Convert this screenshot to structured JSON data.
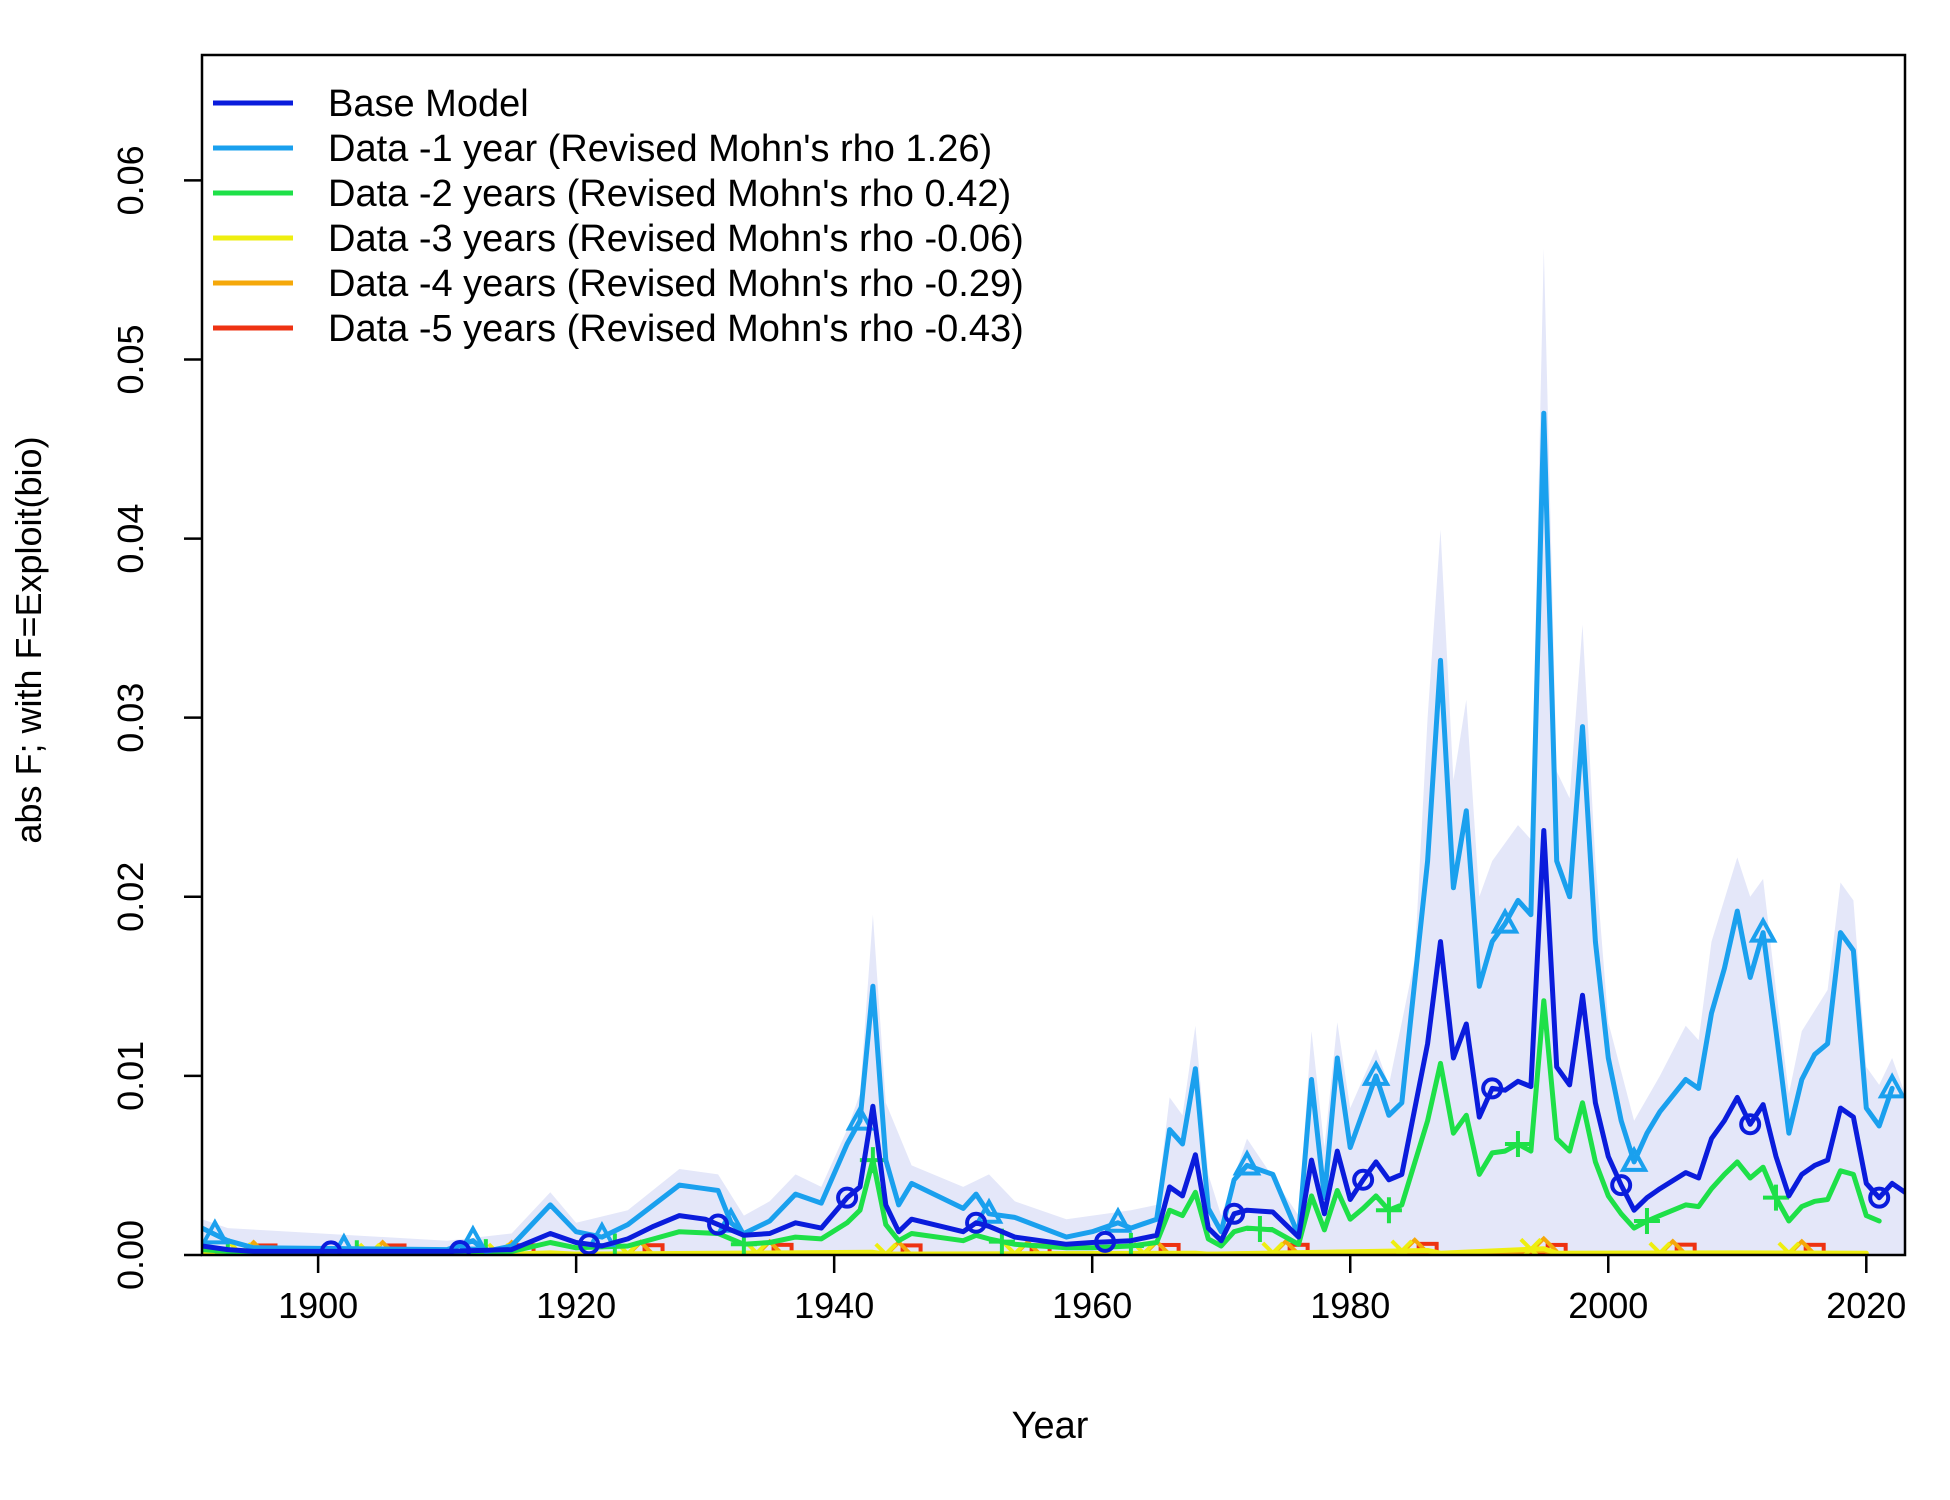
{
  "chart_data": {
    "type": "line",
    "xlabel": "Year",
    "ylabel": "abs F; with F=Exploit(bio)",
    "xlim": [
      1891,
      2023
    ],
    "ylim": [
      0,
      0.067
    ],
    "x_ticks": [
      "1900",
      "1920",
      "1940",
      "1960",
      "1980",
      "2000",
      "2020"
    ],
    "y_ticks": [
      "0.00",
      "0.01",
      "0.02",
      "0.03",
      "0.04",
      "0.05",
      "0.06"
    ],
    "legend_position": "top-left",
    "uncertainty_band": {
      "color": "#e4e7f9",
      "upper": [
        [
          1891,
          0.002
        ],
        [
          1893,
          0.0015
        ],
        [
          1910,
          0.0008
        ],
        [
          1915,
          0.0012
        ],
        [
          1918,
          0.0035
        ],
        [
          1920,
          0.0018
        ],
        [
          1924,
          0.0025
        ],
        [
          1928,
          0.0048
        ],
        [
          1931,
          0.0045
        ],
        [
          1933,
          0.0022
        ],
        [
          1935,
          0.003
        ],
        [
          1937,
          0.0045
        ],
        [
          1939,
          0.0038
        ],
        [
          1941,
          0.007
        ],
        [
          1942,
          0.009
        ],
        [
          1943,
          0.019
        ],
        [
          1944,
          0.0085
        ],
        [
          1946,
          0.005
        ],
        [
          1950,
          0.0038
        ],
        [
          1952,
          0.0045
        ],
        [
          1954,
          0.003
        ],
        [
          1958,
          0.002
        ],
        [
          1963,
          0.0025
        ],
        [
          1965,
          0.0028
        ],
        [
          1966,
          0.0088
        ],
        [
          1967,
          0.0078
        ],
        [
          1968,
          0.0128
        ],
        [
          1969,
          0.0045
        ],
        [
          1970,
          0.0022
        ],
        [
          1972,
          0.0065
        ],
        [
          1976,
          0.0022
        ],
        [
          1977,
          0.0125
        ],
        [
          1978,
          0.006
        ],
        [
          1979,
          0.013
        ],
        [
          1980,
          0.0082
        ],
        [
          1982,
          0.0115
        ],
        [
          1983,
          0.0095
        ],
        [
          1985,
          0.0165
        ],
        [
          1986,
          0.03
        ],
        [
          1987,
          0.0405
        ],
        [
          1988,
          0.0265
        ],
        [
          1989,
          0.031
        ],
        [
          1990,
          0.02
        ],
        [
          1991,
          0.022
        ],
        [
          1993,
          0.024
        ],
        [
          1994,
          0.0232
        ],
        [
          1995,
          0.0562
        ],
        [
          1996,
          0.027
        ],
        [
          1997,
          0.0255
        ],
        [
          1998,
          0.0352
        ],
        [
          1999,
          0.022
        ],
        [
          2000,
          0.013
        ],
        [
          2002,
          0.0075
        ],
        [
          2004,
          0.01
        ],
        [
          2006,
          0.0128
        ],
        [
          2007,
          0.012
        ],
        [
          2008,
          0.0175
        ],
        [
          2010,
          0.0222
        ],
        [
          2011,
          0.02
        ],
        [
          2012,
          0.021
        ],
        [
          2013,
          0.0148
        ],
        [
          2014,
          0.009
        ],
        [
          2015,
          0.0125
        ],
        [
          2017,
          0.0148
        ],
        [
          2018,
          0.0208
        ],
        [
          2019,
          0.0198
        ],
        [
          2020,
          0.0105
        ],
        [
          2021,
          0.0095
        ],
        [
          2022,
          0.011
        ],
        [
          2023,
          0.009
        ]
      ]
    },
    "series": [
      {
        "name": "Base Model",
        "color": "#0a1cdc",
        "marker": "circle",
        "marker_years": [
          1901,
          1911,
          1921,
          1931,
          1941,
          1951,
          1961,
          1971,
          1981,
          1991,
          2001,
          2011,
          2021
        ],
        "x": [
          1891,
          1893,
          1895,
          1910,
          1915,
          1918,
          1920,
          1922,
          1924,
          1926,
          1928,
          1930,
          1931,
          1933,
          1935,
          1937,
          1939,
          1941,
          1942,
          1943,
          1944,
          1945,
          1946,
          1950,
          1951,
          1952,
          1954,
          1958,
          1960,
          1963,
          1965,
          1966,
          1967,
          1968,
          1969,
          1970,
          1971,
          1972,
          1974,
          1976,
          1977,
          1978,
          1979,
          1980,
          1981,
          1982,
          1983,
          1984,
          1986,
          1987,
          1988,
          1989,
          1990,
          1991,
          1992,
          1993,
          1994,
          1995,
          1996,
          1997,
          1998,
          1999,
          2000,
          2001,
          2002,
          2003,
          2004,
          2006,
          2007,
          2008,
          2009,
          2010,
          2011,
          2012,
          2013,
          2014,
          2015,
          2016,
          2017,
          2018,
          2019,
          2020,
          2021,
          2022,
          2023
        ],
        "y": [
          0.0005,
          0.0003,
          0.0002,
          0.0002,
          0.0003,
          0.0012,
          0.0007,
          0.0005,
          0.0009,
          0.0016,
          0.0022,
          0.002,
          0.0017,
          0.0011,
          0.0012,
          0.0018,
          0.0015,
          0.0032,
          0.0038,
          0.0083,
          0.0028,
          0.0013,
          0.002,
          0.0013,
          0.0018,
          0.0016,
          0.001,
          0.0006,
          0.0007,
          0.0008,
          0.0011,
          0.0038,
          0.0033,
          0.0056,
          0.0015,
          0.0008,
          0.0023,
          0.0025,
          0.0024,
          0.001,
          0.0053,
          0.0023,
          0.0058,
          0.0031,
          0.0042,
          0.0052,
          0.0042,
          0.0045,
          0.0118,
          0.0175,
          0.011,
          0.0129,
          0.0077,
          0.0093,
          0.0092,
          0.0097,
          0.0094,
          0.0237,
          0.0105,
          0.0095,
          0.0145,
          0.0085,
          0.0055,
          0.0039,
          0.0025,
          0.0032,
          0.0037,
          0.0046,
          0.0043,
          0.0065,
          0.0075,
          0.0088,
          0.0073,
          0.0084,
          0.0055,
          0.0033,
          0.0045,
          0.005,
          0.0053,
          0.0082,
          0.0077,
          0.004,
          0.0032,
          0.004,
          0.0035
        ]
      },
      {
        "name": "Data -1 year (Revised Mohn's rho 1.26)",
        "color": "#1aa0ee",
        "marker": "triangle",
        "marker_years": [
          1892,
          1902,
          1912,
          1922,
          1932,
          1942,
          1952,
          1962,
          1972,
          1982,
          1992,
          2002,
          2012,
          2022
        ],
        "x": [
          1891,
          1893,
          1895,
          1910,
          1912,
          1913,
          1915,
          1918,
          1920,
          1922,
          1924,
          1926,
          1928,
          1930,
          1931,
          1932,
          1933,
          1935,
          1937,
          1939,
          1941,
          1942,
          1943,
          1944,
          1945,
          1946,
          1950,
          1951,
          1952,
          1954,
          1958,
          1960,
          1962,
          1963,
          1965,
          1966,
          1967,
          1968,
          1969,
          1970,
          1971,
          1972,
          1974,
          1976,
          1977,
          1978,
          1979,
          1980,
          1981,
          1982,
          1983,
          1984,
          1986,
          1987,
          1988,
          1989,
          1990,
          1991,
          1992,
          1993,
          1994,
          1995,
          1996,
          1997,
          1998,
          1999,
          2000,
          2001,
          2002,
          2003,
          2004,
          2006,
          2007,
          2008,
          2009,
          2010,
          2011,
          2012,
          2013,
          2014,
          2015,
          2016,
          2017,
          2018,
          2019,
          2020,
          2021,
          2022
        ],
        "y": [
          0.0015,
          0.0008,
          0.0004,
          0.0003,
          0.0008,
          0.0002,
          0.0005,
          0.0028,
          0.0013,
          0.001,
          0.0017,
          0.0028,
          0.0039,
          0.0037,
          0.0036,
          0.0018,
          0.0012,
          0.0019,
          0.0034,
          0.0029,
          0.0062,
          0.0075,
          0.015,
          0.0053,
          0.0028,
          0.004,
          0.0026,
          0.0034,
          0.0023,
          0.0021,
          0.001,
          0.0013,
          0.0018,
          0.0015,
          0.002,
          0.007,
          0.0062,
          0.0104,
          0.0026,
          0.0013,
          0.0042,
          0.005,
          0.0045,
          0.0011,
          0.0098,
          0.0032,
          0.011,
          0.006,
          0.008,
          0.01,
          0.0078,
          0.0085,
          0.022,
          0.0332,
          0.0205,
          0.0248,
          0.015,
          0.0175,
          0.0185,
          0.0198,
          0.019,
          0.047,
          0.022,
          0.02,
          0.0295,
          0.0175,
          0.011,
          0.0075,
          0.0052,
          0.0068,
          0.008,
          0.0098,
          0.0093,
          0.0135,
          0.016,
          0.0192,
          0.0155,
          0.018,
          0.0125,
          0.0068,
          0.0098,
          0.0112,
          0.0118,
          0.018,
          0.017,
          0.0082,
          0.0072,
          0.0093
        ]
      },
      {
        "name": "Data -2 years (Revised Mohn's rho 0.42)",
        "color": "#1ee048",
        "marker": "plus",
        "marker_years": [
          1893,
          1903,
          1913,
          1923,
          1933,
          1943,
          1953,
          1963,
          1973,
          1983,
          1993,
          2003,
          2013
        ],
        "x": [
          1891,
          1895,
          1910,
          1915,
          1918,
          1920,
          1924,
          1926,
          1928,
          1931,
          1933,
          1935,
          1937,
          1939,
          1941,
          1942,
          1943,
          1944,
          1945,
          1946,
          1950,
          1951,
          1952,
          1954,
          1958,
          1960,
          1963,
          1965,
          1966,
          1967,
          1968,
          1969,
          1970,
          1971,
          1972,
          1974,
          1976,
          1977,
          1978,
          1979,
          1980,
          1981,
          1982,
          1983,
          1984,
          1986,
          1987,
          1988,
          1989,
          1990,
          1991,
          1992,
          1993,
          1994,
          1995,
          1996,
          1997,
          1998,
          1999,
          2000,
          2001,
          2002,
          2003,
          2004,
          2006,
          2007,
          2008,
          2009,
          2010,
          2011,
          2012,
          2013,
          2014,
          2015,
          2016,
          2017,
          2018,
          2019,
          2020,
          2021
        ],
        "y": [
          0.0003,
          0.0001,
          0.0001,
          0.0002,
          0.0007,
          0.0004,
          0.0005,
          0.0009,
          0.0013,
          0.0012,
          0.0006,
          0.0007,
          0.001,
          0.0009,
          0.0018,
          0.0025,
          0.0053,
          0.0017,
          0.0008,
          0.0012,
          0.0008,
          0.0011,
          0.0009,
          0.0006,
          0.0004,
          0.0004,
          0.0005,
          0.0007,
          0.0025,
          0.0022,
          0.0035,
          0.0009,
          0.0005,
          0.0013,
          0.0015,
          0.0014,
          0.0006,
          0.0033,
          0.0014,
          0.0036,
          0.002,
          0.0026,
          0.0033,
          0.0025,
          0.0028,
          0.0075,
          0.0107,
          0.0068,
          0.0078,
          0.0045,
          0.0057,
          0.0058,
          0.0062,
          0.0058,
          0.0142,
          0.0065,
          0.0058,
          0.0085,
          0.0052,
          0.0033,
          0.0023,
          0.0015,
          0.0019,
          0.0022,
          0.0028,
          0.0027,
          0.0037,
          0.0045,
          0.0052,
          0.0043,
          0.0049,
          0.0032,
          0.0019,
          0.0027,
          0.003,
          0.0031,
          0.0047,
          0.0045,
          0.0022,
          0.0019
        ]
      },
      {
        "name": "Data -3 years (Revised Mohn's rho -0.06)",
        "color": "#eeee10",
        "marker": "x",
        "marker_years": [
          1894,
          1904,
          1914,
          1924,
          1934,
          1944,
          1954,
          1964,
          1974,
          1984,
          1994,
          2004,
          2014
        ],
        "x": [
          1891,
          1893,
          1895,
          1915,
          1918,
          1920,
          1943,
          1944,
          1968,
          1969,
          1986,
          1987,
          1995,
          1996,
          2010,
          2020
        ],
        "y": [
          0.00015,
          0.0001,
          5e-05,
          5e-05,
          0.00012,
          5e-05,
          0.00015,
          5e-05,
          0.0001,
          5e-05,
          0.00025,
          0.0001,
          0.00035,
          0.0001,
          0.00012,
          0.0001
        ]
      },
      {
        "name": "Data -4 years (Revised Mohn's rho -0.29)",
        "color": "#f5a80a",
        "marker": "diamond",
        "marker_years": [
          1895,
          1905,
          1915,
          1925,
          1935,
          1945,
          1955,
          1965,
          1975,
          1985,
          1995,
          2005,
          2015
        ],
        "x": [
          1891,
          1893,
          1895,
          1915,
          1918,
          1920,
          1943,
          1944,
          1968,
          1969,
          1986,
          1987,
          1995,
          1996,
          2010,
          2019
        ],
        "y": [
          0.0001,
          8e-05,
          4e-05,
          4e-05,
          8e-05,
          4e-05,
          0.0001,
          4e-05,
          8e-05,
          4e-05,
          0.00018,
          8e-05,
          0.00025,
          8e-05,
          0.0001,
          8e-05
        ]
      },
      {
        "name": "Data -5 years (Revised Mohn's rho -0.43)",
        "color": "#ee3212",
        "marker": "square",
        "marker_years": [
          1896,
          1906,
          1916,
          1926,
          1936,
          1946,
          1956,
          1966,
          1976,
          1986,
          1996,
          2006,
          2016
        ],
        "x": [
          1891,
          1893,
          1895,
          1915,
          1918,
          1920,
          1943,
          1944,
          1968,
          1969,
          1986,
          1987,
          1995,
          1996,
          2010,
          2018
        ],
        "y": [
          8e-05,
          6e-05,
          3e-05,
          3e-05,
          6e-05,
          3e-05,
          8e-05,
          3e-05,
          6e-05,
          3e-05,
          0.00012,
          6e-05,
          0.00018,
          6e-05,
          8e-05,
          6e-05
        ]
      }
    ]
  }
}
